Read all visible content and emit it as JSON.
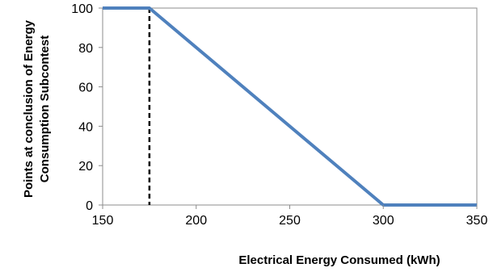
{
  "chart_data": {
    "type": "line",
    "xlabel": "Electrical Energy Consumed (kWh)",
    "ylabel_lines": [
      "Points at conclusion  of Energy",
      "Consumption Subcontest"
    ],
    "xlim": [
      150,
      350
    ],
    "ylim": [
      0,
      100
    ],
    "x_ticks": [
      150,
      200,
      250,
      300,
      350
    ],
    "y_ticks": [
      0,
      20,
      40,
      60,
      80,
      100
    ],
    "grid": false,
    "legend": "none",
    "series": [
      {
        "x": [
          150,
          175,
          300,
          350
        ],
        "y": [
          100,
          100,
          0,
          0
        ],
        "color": "#4f81bd"
      }
    ],
    "reference_lines": [
      {
        "orientation": "vertical",
        "x": 175,
        "style": "dashed",
        "color": "#000000"
      }
    ]
  }
}
